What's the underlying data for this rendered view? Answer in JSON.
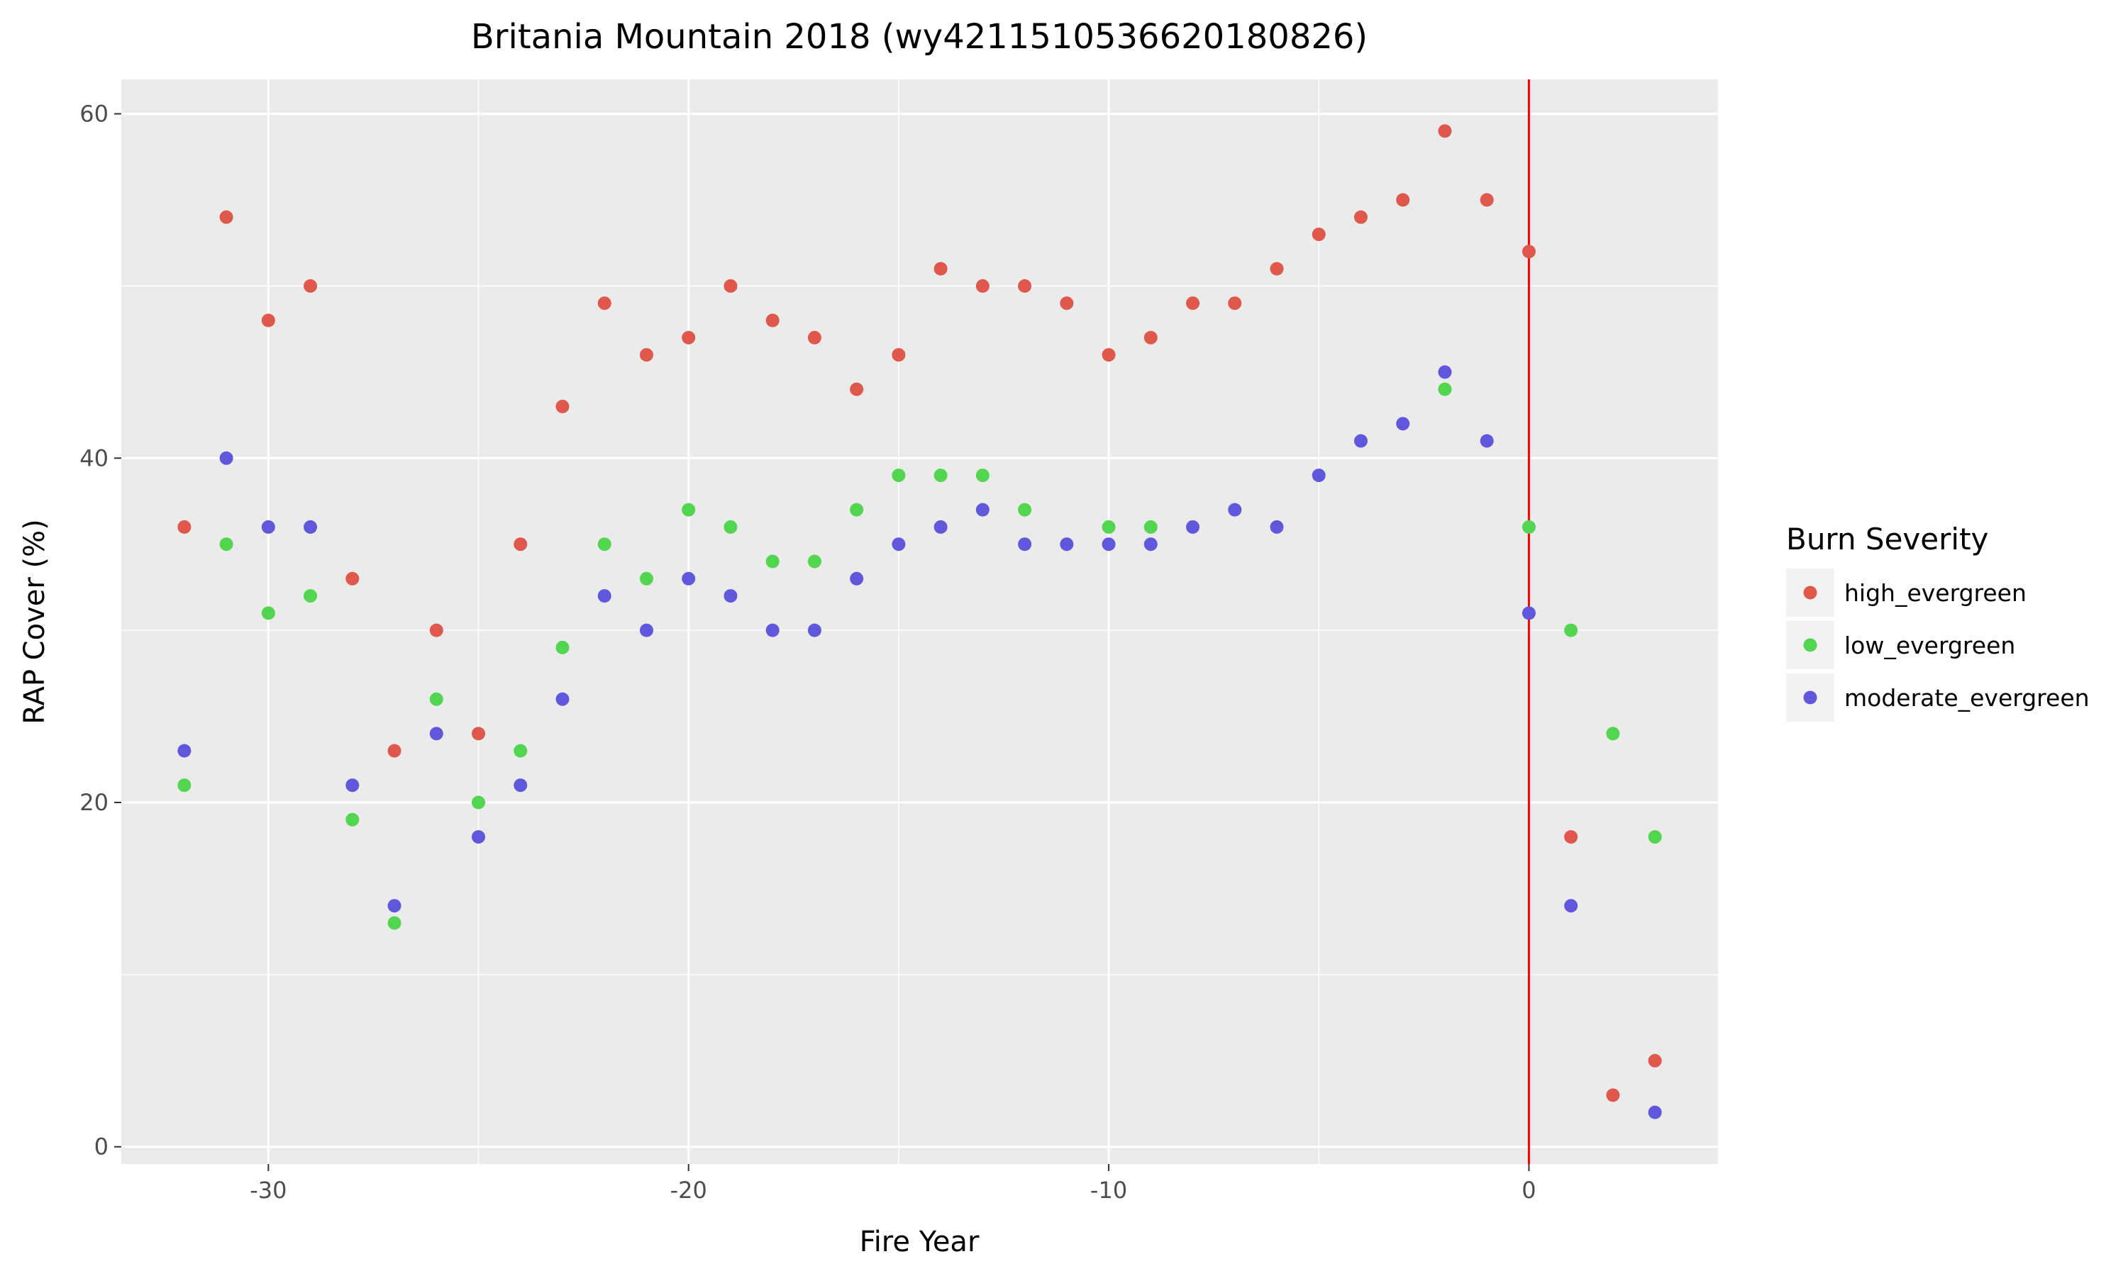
{
  "chart_data": {
    "type": "scatter",
    "title": "Britania Mountain 2018 (wy4211510536620180826)",
    "xlabel": "Fire Year",
    "ylabel": "RAP Cover (%)",
    "xlim": [
      -33.5,
      4.5
    ],
    "ylim": [
      -1,
      62
    ],
    "x_ticks": [
      -30,
      -20,
      -10,
      0
    ],
    "y_ticks": [
      0,
      20,
      40,
      60
    ],
    "grid": true,
    "reference_line": {
      "x": 0,
      "color": "#ff0000"
    },
    "legend": {
      "title": "Burn Severity",
      "position": "right"
    },
    "series": [
      {
        "name": "high_evergreen",
        "color": "#e0574c",
        "points": [
          [
            -32,
            36
          ],
          [
            -31,
            54
          ],
          [
            -30,
            48
          ],
          [
            -29,
            50
          ],
          [
            -28,
            33
          ],
          [
            -27,
            23
          ],
          [
            -26,
            30
          ],
          [
            -25,
            24
          ],
          [
            -24,
            35
          ],
          [
            -23,
            43
          ],
          [
            -22,
            49
          ],
          [
            -21,
            46
          ],
          [
            -20,
            47
          ],
          [
            -19,
            50
          ],
          [
            -18,
            48
          ],
          [
            -17,
            47
          ],
          [
            -16,
            44
          ],
          [
            -15,
            46
          ],
          [
            -14,
            51
          ],
          [
            -13,
            50
          ],
          [
            -12,
            50
          ],
          [
            -11,
            49
          ],
          [
            -10,
            46
          ],
          [
            -9,
            47
          ],
          [
            -8,
            49
          ],
          [
            -7,
            49
          ],
          [
            -6,
            51
          ],
          [
            -5,
            53
          ],
          [
            -4,
            54
          ],
          [
            -3,
            55
          ],
          [
            -2,
            59
          ],
          [
            -1,
            55
          ],
          [
            0,
            52
          ],
          [
            1,
            18
          ],
          [
            2,
            3
          ],
          [
            3,
            5
          ]
        ]
      },
      {
        "name": "low_evergreen",
        "color": "#53d64f",
        "points": [
          [
            -32,
            21
          ],
          [
            -31,
            35
          ],
          [
            -30,
            31
          ],
          [
            -29,
            32
          ],
          [
            -28,
            19
          ],
          [
            -27,
            13
          ],
          [
            -26,
            26
          ],
          [
            -25,
            20
          ],
          [
            -24,
            23
          ],
          [
            -23,
            29
          ],
          [
            -22,
            35
          ],
          [
            -21,
            33
          ],
          [
            -20,
            37
          ],
          [
            -19,
            36
          ],
          [
            -18,
            34
          ],
          [
            -17,
            34
          ],
          [
            -16,
            37
          ],
          [
            -15,
            39
          ],
          [
            -14,
            39
          ],
          [
            -13,
            39
          ],
          [
            -12,
            37
          ],
          [
            -10,
            36
          ],
          [
            -9,
            36
          ],
          [
            -2,
            44
          ],
          [
            0,
            36
          ],
          [
            1,
            30
          ],
          [
            2,
            24
          ],
          [
            3,
            18
          ]
        ]
      },
      {
        "name": "moderate_evergreen",
        "color": "#6058dc",
        "points": [
          [
            -32,
            23
          ],
          [
            -31,
            40
          ],
          [
            -30,
            36
          ],
          [
            -29,
            36
          ],
          [
            -28,
            21
          ],
          [
            -27,
            14
          ],
          [
            -26,
            24
          ],
          [
            -25,
            18
          ],
          [
            -24,
            21
          ],
          [
            -23,
            26
          ],
          [
            -22,
            32
          ],
          [
            -21,
            30
          ],
          [
            -20,
            33
          ],
          [
            -19,
            32
          ],
          [
            -18,
            30
          ],
          [
            -17,
            30
          ],
          [
            -16,
            33
          ],
          [
            -15,
            35
          ],
          [
            -14,
            36
          ],
          [
            -13,
            37
          ],
          [
            -12,
            35
          ],
          [
            -11,
            35
          ],
          [
            -10,
            35
          ],
          [
            -9,
            35
          ],
          [
            -8,
            36
          ],
          [
            -7,
            37
          ],
          [
            -6,
            36
          ],
          [
            -5,
            39
          ],
          [
            -4,
            41
          ],
          [
            -3,
            42
          ],
          [
            -2,
            45
          ],
          [
            -1,
            41
          ],
          [
            0,
            31
          ],
          [
            1,
            14
          ],
          [
            3,
            2
          ]
        ]
      }
    ]
  }
}
